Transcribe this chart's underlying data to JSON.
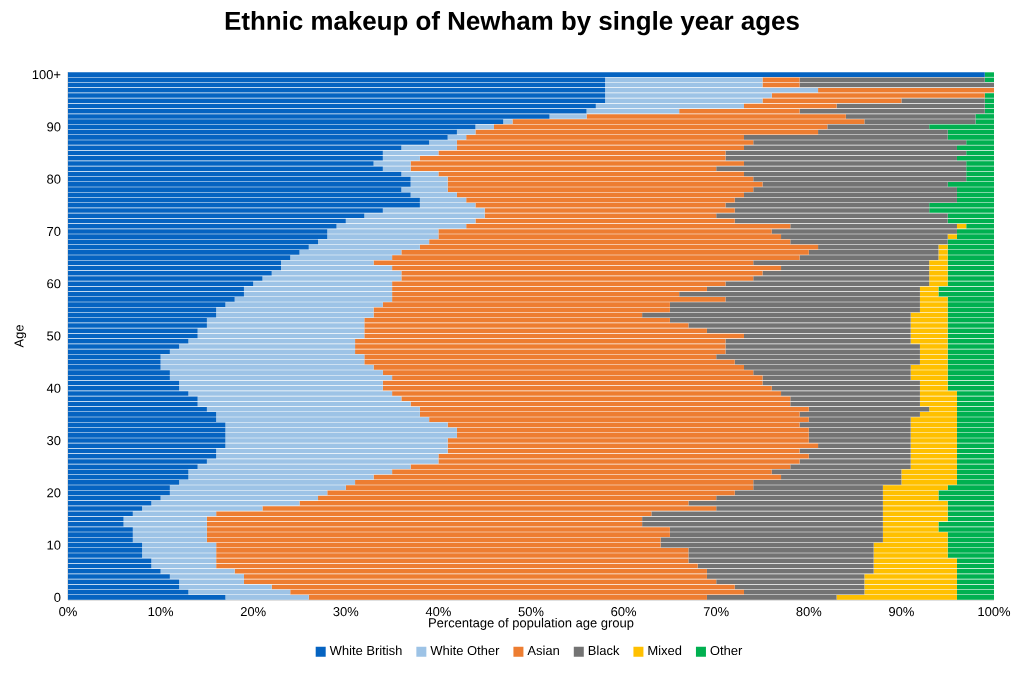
{
  "chart_data": {
    "type": "bar",
    "orientation": "horizontal",
    "stacked": true,
    "title": "Ethnic makeup of Newham by single year ages",
    "xlabel": "Percentage of population age group",
    "ylabel": "Age",
    "categories": [
      "100+",
      null,
      null,
      null,
      null,
      null,
      null,
      null,
      null,
      null,
      "90",
      null,
      null,
      null,
      null,
      null,
      null,
      null,
      null,
      null,
      "80",
      null,
      null,
      null,
      null,
      null,
      null,
      null,
      null,
      null,
      "70",
      null,
      null,
      null,
      null,
      null,
      null,
      null,
      null,
      null,
      "60",
      null,
      null,
      null,
      null,
      null,
      null,
      null,
      null,
      null,
      "50",
      null,
      null,
      null,
      null,
      null,
      null,
      null,
      null,
      null,
      "40",
      null,
      null,
      null,
      null,
      null,
      null,
      null,
      null,
      null,
      "30",
      null,
      null,
      null,
      null,
      null,
      null,
      null,
      null,
      null,
      "20",
      null,
      null,
      null,
      null,
      null,
      null,
      null,
      null,
      null,
      "10",
      null,
      null,
      null,
      null,
      null,
      null,
      null,
      null,
      null,
      "0"
    ],
    "xlim": [
      0,
      100
    ],
    "xticks": [
      {
        "value": 0,
        "label": "0%"
      },
      {
        "value": 10,
        "label": "10%"
      },
      {
        "value": 20,
        "label": "20%"
      },
      {
        "value": 30,
        "label": "30%"
      },
      {
        "value": 40,
        "label": "40%"
      },
      {
        "value": 50,
        "label": "50%"
      },
      {
        "value": 60,
        "label": "60%"
      },
      {
        "value": 70,
        "label": "70%"
      },
      {
        "value": 80,
        "label": "80%"
      },
      {
        "value": 90,
        "label": "90%"
      },
      {
        "value": 100,
        "label": "100%"
      }
    ],
    "legend": "bottom",
    "series": [
      {
        "name": "White British",
        "color": "#0563c1",
        "values": [
          99,
          58,
          58,
          58,
          58,
          58,
          57,
          56,
          52,
          47,
          44,
          42,
          41,
          39,
          36,
          34,
          34,
          33,
          34,
          36,
          37,
          37,
          36,
          37,
          38,
          38,
          34,
          32,
          30,
          29,
          28,
          28,
          27,
          26,
          25,
          24,
          23,
          23,
          22,
          21,
          20,
          19,
          19,
          18,
          17,
          16,
          16,
          15,
          15,
          14,
          14,
          13,
          12,
          11,
          10,
          10,
          10,
          11,
          11,
          12,
          12,
          13,
          14,
          14,
          15,
          16,
          16,
          17,
          17,
          17,
          17,
          17,
          16,
          16,
          15,
          14,
          13,
          13,
          12,
          11,
          11,
          10,
          9,
          8,
          7,
          6,
          6,
          7,
          7,
          7,
          8,
          8,
          8,
          9,
          9,
          10,
          11,
          12,
          12,
          13,
          17
        ]
      },
      {
        "name": "White Other",
        "color": "#9dc3e6",
        "values": [
          0,
          17,
          17,
          23,
          18,
          17,
          16,
          10,
          4,
          1,
          2,
          2,
          2,
          3,
          6,
          6,
          4,
          4,
          3,
          4,
          4,
          4,
          5,
          5,
          5,
          6,
          11,
          13,
          14,
          14,
          12,
          12,
          12,
          12,
          11,
          11,
          10,
          12,
          14,
          15,
          15,
          16,
          16,
          17,
          17,
          17,
          17,
          17,
          17,
          18,
          18,
          18,
          19,
          20,
          22,
          22,
          23,
          23,
          24,
          22,
          22,
          22,
          22,
          23,
          23,
          22,
          23,
          24,
          25,
          25,
          24,
          24,
          25,
          24,
          25,
          23,
          22,
          20,
          19,
          19,
          17,
          17,
          16,
          13,
          9,
          9,
          9,
          8,
          8,
          8,
          8,
          8,
          8,
          7,
          7,
          8,
          8,
          7,
          10,
          11,
          9
        ]
      },
      {
        "name": "Asian",
        "color": "#ed7d31",
        "values": [
          0,
          4,
          4,
          19,
          23,
          15,
          10,
          13,
          28,
          38,
          36,
          37,
          30,
          32,
          31,
          31,
          33,
          36,
          33,
          33,
          33,
          34,
          33,
          31,
          29,
          27,
          27,
          25,
          28,
          35,
          36,
          37,
          39,
          43,
          44,
          44,
          41,
          42,
          39,
          38,
          36,
          34,
          31,
          36,
          31,
          32,
          29,
          33,
          35,
          37,
          41,
          40,
          40,
          40,
          38,
          40,
          40,
          40,
          40,
          41,
          42,
          42,
          42,
          41,
          42,
          41,
          41,
          38,
          38,
          38,
          39,
          40,
          38,
          40,
          39,
          41,
          41,
          44,
          43,
          44,
          44,
          43,
          42,
          49,
          47,
          47,
          47,
          50,
          50,
          49,
          48,
          51,
          51,
          51,
          52,
          51,
          50,
          51,
          50,
          49,
          43
        ]
      },
      {
        "name": "Black",
        "color": "#737373",
        "values": [
          0,
          20,
          21,
          0,
          0,
          9,
          16,
          20,
          14,
          12,
          11,
          14,
          22,
          23,
          23,
          26,
          25,
          24,
          27,
          24,
          23,
          20,
          22,
          23,
          24,
          22,
          21,
          25,
          23,
          18,
          20,
          18,
          17,
          13,
          14,
          15,
          19,
          16,
          18,
          19,
          22,
          23,
          26,
          21,
          27,
          27,
          29,
          26,
          24,
          22,
          18,
          20,
          21,
          21,
          22,
          20,
          18,
          17,
          16,
          17,
          16,
          15,
          14,
          14,
          13,
          13,
          11,
          12,
          11,
          11,
          11,
          10,
          12,
          11,
          12,
          13,
          14,
          13,
          16,
          14,
          16,
          18,
          21,
          18,
          25,
          26,
          26,
          23,
          23,
          24,
          23,
          20,
          20,
          20,
          19,
          18,
          17,
          16,
          14,
          13,
          14
        ]
      },
      {
        "name": "Mixed",
        "color": "#ffc000",
        "values": [
          0,
          0,
          0,
          0,
          0,
          0,
          0,
          0,
          0,
          0,
          0,
          0,
          0,
          0,
          0,
          0,
          0,
          0,
          0,
          0,
          0,
          0,
          0,
          0,
          0,
          0,
          0,
          0,
          0,
          1,
          0,
          1,
          0,
          1,
          1,
          1,
          2,
          2,
          2,
          2,
          2,
          2,
          2,
          3,
          3,
          3,
          4,
          4,
          4,
          4,
          4,
          4,
          3,
          3,
          3,
          3,
          4,
          4,
          4,
          3,
          3,
          4,
          4,
          4,
          3,
          4,
          5,
          5,
          5,
          5,
          5,
          5,
          5,
          5,
          5,
          5,
          6,
          6,
          6,
          7,
          6,
          6,
          7,
          7,
          7,
          7,
          6,
          6,
          7,
          7,
          8,
          8,
          8,
          9,
          9,
          9,
          10,
          10,
          10,
          10,
          13
        ]
      },
      {
        "name": "Other",
        "color": "#00b050",
        "values": [
          1,
          1,
          0,
          0,
          1,
          1,
          1,
          1,
          2,
          2,
          7,
          5,
          5,
          3,
          4,
          3,
          4,
          3,
          3,
          3,
          3,
          5,
          4,
          4,
          4,
          7,
          7,
          5,
          5,
          3,
          4,
          4,
          5,
          5,
          5,
          5,
          5,
          5,
          5,
          5,
          5,
          6,
          6,
          5,
          5,
          5,
          5,
          5,
          5,
          5,
          5,
          5,
          5,
          5,
          5,
          5,
          5,
          5,
          5,
          5,
          5,
          4,
          4,
          4,
          4,
          4,
          4,
          4,
          4,
          4,
          4,
          4,
          4,
          4,
          4,
          4,
          4,
          4,
          4,
          5,
          6,
          6,
          5,
          5,
          5,
          5,
          6,
          6,
          5,
          5,
          5,
          5,
          5,
          4,
          4,
          4,
          4,
          4,
          4,
          4,
          4
        ]
      }
    ]
  }
}
